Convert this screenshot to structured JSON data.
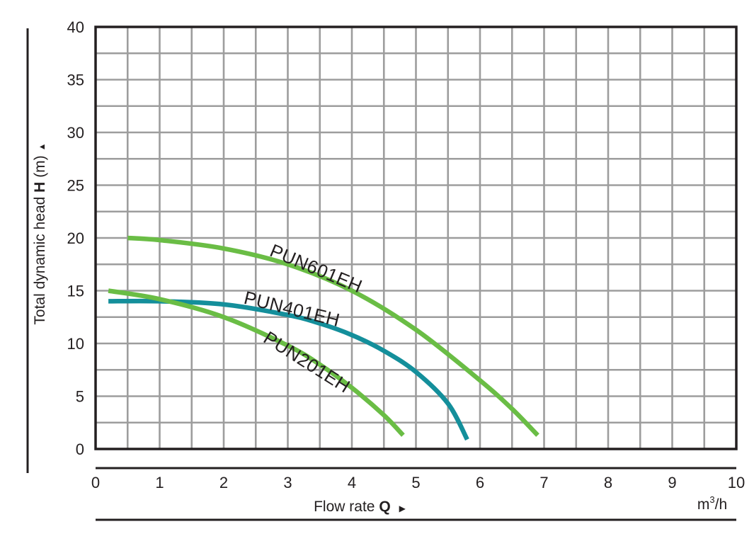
{
  "chart_data": {
    "type": "line",
    "xlabel_prefix": "Flow rate ",
    "xlabel_symbol": "Q",
    "xunit_base": "m",
    "xunit_exp": "3",
    "xunit_tail": "/h",
    "ylabel_prefix": "Total dynamic head ",
    "ylabel_symbol": "H",
    "ylabel_suffix": " (m)",
    "xlim": [
      0,
      10
    ],
    "ylim": [
      0,
      40
    ],
    "x_ticks": [
      "0",
      "1",
      "2",
      "3",
      "4",
      "5",
      "6",
      "7",
      "8",
      "9",
      "10"
    ],
    "y_ticks": [
      "0",
      "5",
      "10",
      "15",
      "20",
      "25",
      "30",
      "35",
      "40"
    ],
    "grid": true,
    "series": [
      {
        "name": "PUN601EH",
        "color": "#6abd45",
        "x": [
          0.5,
          1.0,
          2.0,
          3.0,
          4.0,
          5.0,
          6.0,
          6.5,
          6.9
        ],
        "y": [
          20.0,
          19.8,
          19.0,
          17.5,
          15.0,
          11.3,
          6.5,
          3.8,
          1.3
        ]
      },
      {
        "name": "PUN401EH",
        "color": "#148f9b",
        "x": [
          0.2,
          1.0,
          2.0,
          3.0,
          3.5,
          4.0,
          4.5,
          5.0,
          5.5,
          5.8
        ],
        "y": [
          14.0,
          14.0,
          13.7,
          12.7,
          11.9,
          10.8,
          9.3,
          7.3,
          4.3,
          0.9
        ]
      },
      {
        "name": "PUN201EH",
        "color": "#6abd45",
        "x": [
          0.2,
          1.0,
          2.0,
          3.0,
          3.5,
          4.0,
          4.5,
          4.8
        ],
        "y": [
          15.0,
          14.2,
          12.5,
          9.8,
          8.0,
          5.8,
          3.2,
          1.3
        ]
      }
    ]
  }
}
